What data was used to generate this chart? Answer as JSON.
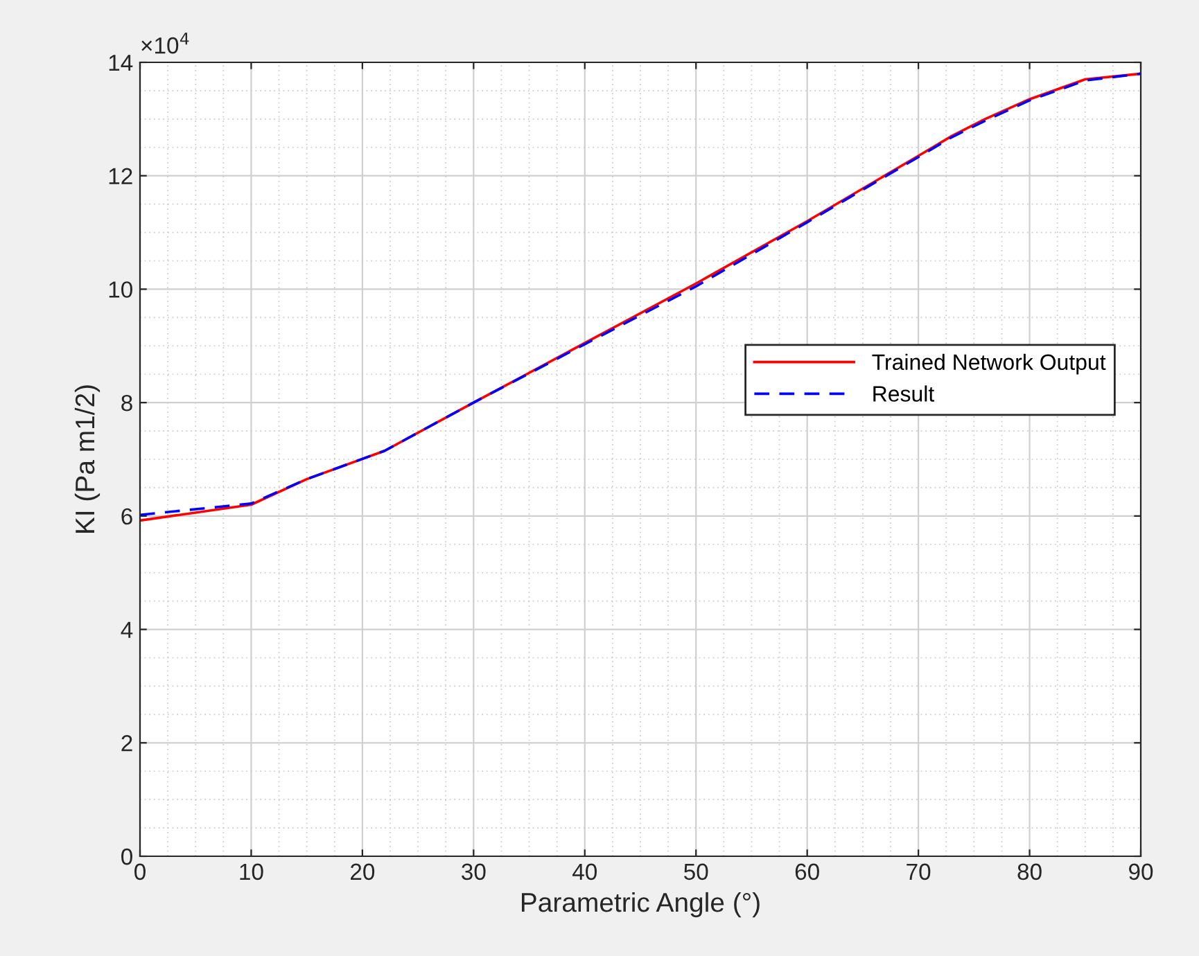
{
  "chart_data": {
    "type": "line",
    "xlabel": "Parametric Angle (°)",
    "ylabel": "KI (Pa m1/2)",
    "annotations": [
      "×10$^{4}$"
    ],
    "series": [
      {
        "name": "Trained Network Output",
        "color": "#ff0000",
        "line_style": "solid",
        "x": [
          0,
          10,
          15,
          22,
          30,
          40,
          50,
          60,
          70,
          73,
          76,
          80,
          85,
          90
        ],
        "values": [
          5.92,
          6.2,
          6.65,
          7.15,
          8.0,
          9.05,
          10.1,
          11.2,
          12.35,
          12.7,
          13.0,
          13.35,
          13.7,
          13.8
        ]
      },
      {
        "name": "Result",
        "color": "#0000ff",
        "line_style": "dashed",
        "x": [
          0,
          10,
          15,
          22,
          30,
          40,
          50,
          60,
          70,
          73,
          76,
          80,
          85,
          90
        ],
        "values": [
          6.02,
          6.22,
          6.65,
          7.15,
          8.0,
          9.03,
          10.05,
          11.18,
          12.33,
          12.68,
          12.97,
          13.33,
          13.68,
          13.8
        ]
      }
    ],
    "xlim": [
      0,
      90
    ],
    "xticks": [
      0,
      10,
      20,
      30,
      40,
      50,
      60,
      70,
      80,
      90
    ],
    "ylim": [
      0,
      14
    ],
    "yticks": [
      0,
      2,
      4,
      6,
      8,
      10,
      12,
      14
    ],
    "grid": true,
    "legend": "right",
    "marker": "none"
  }
}
